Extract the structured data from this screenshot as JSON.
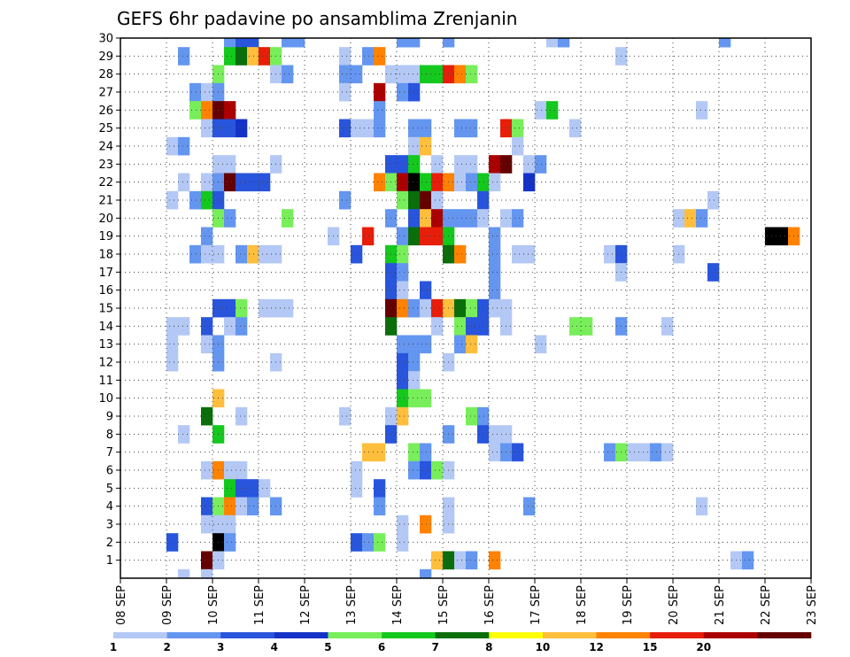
{
  "chart_data": {
    "type": "heatmap",
    "title": "GEFS 6hr padavine po ansamblima Zrenjanin",
    "xlabel": "",
    "ylabel": "",
    "x_ticks": [
      "08 SEP",
      "09 SEP",
      "10 SEP",
      "11 SEP",
      "12 SEP",
      "13 SEP",
      "14 SEP",
      "15 SEP",
      "16 SEP",
      "17 SEP",
      "18 SEP",
      "19 SEP",
      "20 SEP",
      "21 SEP",
      "22 SEP",
      "23 SEP"
    ],
    "y_ticks": [
      "1",
      "2",
      "3",
      "4",
      "5",
      "6",
      "7",
      "8",
      "9",
      "10",
      "11",
      "12",
      "13",
      "14",
      "15",
      "16",
      "17",
      "18",
      "19",
      "20",
      "21",
      "22",
      "23",
      "24",
      "25",
      "26",
      "27",
      "28",
      "29",
      "30"
    ],
    "x_range_6h_steps": [
      0,
      60
    ],
    "y_range_members": [
      0,
      30
    ],
    "grid": true,
    "colorbar": {
      "labels": [
        "1",
        "2",
        "3",
        "4",
        "5",
        "6",
        "7",
        "8",
        "10",
        "12",
        "15",
        "20"
      ],
      "colors": [
        "#b4c8f5",
        "#6496f0",
        "#2855dc",
        "#1432c8",
        "#78ee5a",
        "#14c81e",
        "#0a6e0a",
        "#ffff00",
        "#ffbe3c",
        "#ff8200",
        "#e61e0a",
        "#aa0000",
        "#640000"
      ]
    },
    "cells": [
      [
        9,
        30,
        2
      ],
      [
        10,
        30,
        3
      ],
      [
        11,
        30,
        3
      ],
      [
        14,
        30,
        2
      ],
      [
        15,
        30,
        2
      ],
      [
        24,
        30,
        2
      ],
      [
        25,
        30,
        2
      ],
      [
        28,
        30,
        2
      ],
      [
        37,
        30,
        1
      ],
      [
        38,
        30,
        2
      ],
      [
        52,
        30,
        2
      ],
      [
        5,
        29,
        2
      ],
      [
        9,
        29,
        6
      ],
      [
        10,
        29,
        7
      ],
      [
        11,
        29,
        9
      ],
      [
        12,
        29,
        11
      ],
      [
        13,
        29,
        5
      ],
      [
        19,
        29,
        1
      ],
      [
        21,
        29,
        2
      ],
      [
        22,
        29,
        10
      ],
      [
        43,
        29,
        1
      ],
      [
        8,
        28,
        5
      ],
      [
        13,
        28,
        1
      ],
      [
        14,
        28,
        2
      ],
      [
        19,
        28,
        2
      ],
      [
        20,
        28,
        2
      ],
      [
        23,
        28,
        1
      ],
      [
        24,
        28,
        1
      ],
      [
        25,
        28,
        1
      ],
      [
        26,
        28,
        6
      ],
      [
        27,
        28,
        6
      ],
      [
        28,
        28,
        11
      ],
      [
        29,
        28,
        10
      ],
      [
        30,
        28,
        5
      ],
      [
        6,
        27,
        2
      ],
      [
        7,
        27,
        1
      ],
      [
        8,
        27,
        2
      ],
      [
        19,
        27,
        1
      ],
      [
        22,
        27,
        12
      ],
      [
        24,
        27,
        2
      ],
      [
        25,
        27,
        3
      ],
      [
        6,
        26,
        5
      ],
      [
        7,
        26,
        10
      ],
      [
        8,
        26,
        13
      ],
      [
        9,
        26,
        12
      ],
      [
        22,
        26,
        2
      ],
      [
        36,
        26,
        1
      ],
      [
        37,
        26,
        6
      ],
      [
        50,
        26,
        1
      ],
      [
        7,
        25,
        1
      ],
      [
        8,
        25,
        3
      ],
      [
        9,
        25,
        3
      ],
      [
        10,
        25,
        4
      ],
      [
        19,
        25,
        3
      ],
      [
        20,
        25,
        1
      ],
      [
        21,
        25,
        1
      ],
      [
        22,
        25,
        2
      ],
      [
        25,
        25,
        2
      ],
      [
        26,
        25,
        2
      ],
      [
        29,
        25,
        2
      ],
      [
        30,
        25,
        2
      ],
      [
        33,
        25,
        11
      ],
      [
        34,
        25,
        5
      ],
      [
        39,
        25,
        1
      ],
      [
        4,
        24,
        1
      ],
      [
        5,
        24,
        2
      ],
      [
        25,
        24,
        1
      ],
      [
        26,
        24,
        9
      ],
      [
        34,
        24,
        1
      ],
      [
        8,
        23,
        1
      ],
      [
        9,
        23,
        1
      ],
      [
        13,
        23,
        1
      ],
      [
        23,
        23,
        3
      ],
      [
        24,
        23,
        3
      ],
      [
        25,
        23,
        6
      ],
      [
        27,
        23,
        1
      ],
      [
        29,
        23,
        1
      ],
      [
        30,
        23,
        1
      ],
      [
        32,
        23,
        12
      ],
      [
        33,
        23,
        13
      ],
      [
        35,
        23,
        1
      ],
      [
        36,
        23,
        2
      ],
      [
        5,
        22,
        1
      ],
      [
        7,
        22,
        1
      ],
      [
        8,
        22,
        2
      ],
      [
        9,
        22,
        13
      ],
      [
        10,
        22,
        3
      ],
      [
        11,
        22,
        3
      ],
      [
        12,
        22,
        3
      ],
      [
        22,
        22,
        10
      ],
      [
        23,
        22,
        5
      ],
      [
        24,
        22,
        12
      ],
      [
        25,
        22,
        14
      ],
      [
        26,
        22,
        6
      ],
      [
        27,
        22,
        11
      ],
      [
        28,
        22,
        10
      ],
      [
        29,
        22,
        1
      ],
      [
        30,
        22,
        2
      ],
      [
        31,
        22,
        6
      ],
      [
        32,
        22,
        1
      ],
      [
        35,
        22,
        4
      ],
      [
        4,
        21,
        1
      ],
      [
        6,
        21,
        2
      ],
      [
        7,
        21,
        6
      ],
      [
        8,
        21,
        3
      ],
      [
        19,
        21,
        2
      ],
      [
        24,
        21,
        5
      ],
      [
        25,
        21,
        7
      ],
      [
        26,
        21,
        13
      ],
      [
        27,
        21,
        1
      ],
      [
        31,
        21,
        3
      ],
      [
        51,
        21,
        1
      ],
      [
        8,
        20,
        5
      ],
      [
        9,
        20,
        2
      ],
      [
        14,
        20,
        5
      ],
      [
        23,
        20,
        2
      ],
      [
        25,
        20,
        3
      ],
      [
        26,
        20,
        9
      ],
      [
        27,
        20,
        12
      ],
      [
        28,
        20,
        2
      ],
      [
        29,
        20,
        2
      ],
      [
        30,
        20,
        2
      ],
      [
        31,
        20,
        1
      ],
      [
        33,
        20,
        1
      ],
      [
        34,
        20,
        2
      ],
      [
        48,
        20,
        1
      ],
      [
        49,
        20,
        9
      ],
      [
        50,
        20,
        2
      ],
      [
        7,
        19,
        2
      ],
      [
        18,
        19,
        1
      ],
      [
        21,
        19,
        11
      ],
      [
        24,
        19,
        2
      ],
      [
        25,
        19,
        7
      ],
      [
        26,
        19,
        11
      ],
      [
        27,
        19,
        11
      ],
      [
        28,
        19,
        6
      ],
      [
        32,
        19,
        2
      ],
      [
        56,
        19,
        14
      ],
      [
        57,
        19,
        14
      ],
      [
        58,
        19,
        10
      ],
      [
        6,
        18,
        2
      ],
      [
        7,
        18,
        1
      ],
      [
        8,
        18,
        1
      ],
      [
        10,
        18,
        2
      ],
      [
        11,
        18,
        9
      ],
      [
        12,
        18,
        1
      ],
      [
        13,
        18,
        1
      ],
      [
        20,
        18,
        3
      ],
      [
        23,
        18,
        6
      ],
      [
        24,
        18,
        5
      ],
      [
        28,
        18,
        7
      ],
      [
        29,
        18,
        10
      ],
      [
        32,
        18,
        2
      ],
      [
        34,
        18,
        1
      ],
      [
        35,
        18,
        1
      ],
      [
        42,
        18,
        1
      ],
      [
        43,
        18,
        3
      ],
      [
        48,
        18,
        1
      ],
      [
        23,
        17,
        3
      ],
      [
        24,
        17,
        2
      ],
      [
        32,
        17,
        2
      ],
      [
        43,
        17,
        1
      ],
      [
        51,
        17,
        3
      ],
      [
        23,
        16,
        3
      ],
      [
        24,
        16,
        1
      ],
      [
        26,
        16,
        3
      ],
      [
        32,
        16,
        2
      ],
      [
        8,
        15,
        3
      ],
      [
        9,
        15,
        3
      ],
      [
        10,
        15,
        5
      ],
      [
        12,
        15,
        1
      ],
      [
        13,
        15,
        1
      ],
      [
        14,
        15,
        1
      ],
      [
        23,
        15,
        13
      ],
      [
        24,
        15,
        10
      ],
      [
        25,
        15,
        2
      ],
      [
        26,
        15,
        1
      ],
      [
        27,
        15,
        11
      ],
      [
        28,
        15,
        9
      ],
      [
        29,
        15,
        7
      ],
      [
        30,
        15,
        5
      ],
      [
        31,
        15,
        3
      ],
      [
        32,
        15,
        1
      ],
      [
        33,
        15,
        1
      ],
      [
        4,
        14,
        1
      ],
      [
        5,
        14,
        1
      ],
      [
        7,
        14,
        3
      ],
      [
        9,
        14,
        1
      ],
      [
        10,
        14,
        2
      ],
      [
        23,
        14,
        7
      ],
      [
        27,
        14,
        1
      ],
      [
        29,
        14,
        5
      ],
      [
        30,
        14,
        3
      ],
      [
        31,
        14,
        3
      ],
      [
        33,
        14,
        1
      ],
      [
        39,
        14,
        5
      ],
      [
        40,
        14,
        5
      ],
      [
        43,
        14,
        2
      ],
      [
        47,
        14,
        1
      ],
      [
        4,
        13,
        1
      ],
      [
        7,
        13,
        1
      ],
      [
        8,
        13,
        2
      ],
      [
        24,
        13,
        2
      ],
      [
        25,
        13,
        2
      ],
      [
        26,
        13,
        2
      ],
      [
        29,
        13,
        2
      ],
      [
        30,
        13,
        9
      ],
      [
        36,
        13,
        1
      ],
      [
        4,
        12,
        1
      ],
      [
        8,
        12,
        2
      ],
      [
        13,
        12,
        1
      ],
      [
        24,
        12,
        3
      ],
      [
        25,
        12,
        2
      ],
      [
        28,
        12,
        1
      ],
      [
        24,
        11,
        3
      ],
      [
        25,
        11,
        1
      ],
      [
        8,
        10,
        9
      ],
      [
        24,
        10,
        6
      ],
      [
        25,
        10,
        5
      ],
      [
        26,
        10,
        5
      ],
      [
        7,
        9,
        7
      ],
      [
        10,
        9,
        1
      ],
      [
        19,
        9,
        1
      ],
      [
        23,
        9,
        1
      ],
      [
        24,
        9,
        9
      ],
      [
        30,
        9,
        5
      ],
      [
        31,
        9,
        2
      ],
      [
        5,
        8,
        1
      ],
      [
        8,
        8,
        6
      ],
      [
        23,
        8,
        3
      ],
      [
        28,
        8,
        2
      ],
      [
        31,
        8,
        3
      ],
      [
        32,
        8,
        1
      ],
      [
        33,
        8,
        1
      ],
      [
        21,
        7,
        9
      ],
      [
        22,
        7,
        9
      ],
      [
        25,
        7,
        5
      ],
      [
        26,
        7,
        2
      ],
      [
        32,
        7,
        1
      ],
      [
        33,
        7,
        2
      ],
      [
        34,
        7,
        3
      ],
      [
        42,
        7,
        2
      ],
      [
        43,
        7,
        5
      ],
      [
        44,
        7,
        1
      ],
      [
        45,
        7,
        1
      ],
      [
        46,
        7,
        2
      ],
      [
        47,
        7,
        1
      ],
      [
        7,
        6,
        1
      ],
      [
        8,
        6,
        10
      ],
      [
        9,
        6,
        1
      ],
      [
        10,
        6,
        1
      ],
      [
        20,
        6,
        1
      ],
      [
        25,
        6,
        2
      ],
      [
        26,
        6,
        3
      ],
      [
        27,
        6,
        5
      ],
      [
        28,
        6,
        1
      ],
      [
        9,
        5,
        6
      ],
      [
        10,
        5,
        3
      ],
      [
        11,
        5,
        3
      ],
      [
        12,
        5,
        1
      ],
      [
        20,
        5,
        1
      ],
      [
        22,
        5,
        3
      ],
      [
        7,
        4,
        3
      ],
      [
        8,
        4,
        5
      ],
      [
        9,
        4,
        10
      ],
      [
        10,
        4,
        1
      ],
      [
        11,
        4,
        2
      ],
      [
        13,
        4,
        2
      ],
      [
        22,
        4,
        2
      ],
      [
        28,
        4,
        1
      ],
      [
        35,
        4,
        2
      ],
      [
        50,
        4,
        1
      ],
      [
        7,
        3,
        1
      ],
      [
        8,
        3,
        1
      ],
      [
        9,
        3,
        1
      ],
      [
        24,
        3,
        1
      ],
      [
        26,
        3,
        10
      ],
      [
        28,
        3,
        1
      ],
      [
        4,
        2,
        3
      ],
      [
        8,
        2,
        14
      ],
      [
        9,
        2,
        2
      ],
      [
        20,
        2,
        3
      ],
      [
        21,
        2,
        2
      ],
      [
        22,
        2,
        5
      ],
      [
        24,
        2,
        1
      ],
      [
        7,
        1,
        13
      ],
      [
        8,
        1,
        1
      ],
      [
        27,
        1,
        9
      ],
      [
        28,
        1,
        7
      ],
      [
        29,
        1,
        1
      ],
      [
        30,
        1,
        2
      ],
      [
        32,
        1,
        10
      ],
      [
        53,
        1,
        1
      ],
      [
        54,
        1,
        2
      ],
      [
        5,
        0,
        1
      ],
      [
        7,
        0,
        1
      ],
      [
        26,
        0,
        2
      ],
      [
        6,
        -1,
        3
      ],
      [
        21,
        -1,
        1
      ],
      [
        22,
        -1,
        2
      ],
      [
        23,
        -1,
        10
      ],
      [
        28,
        -1,
        11
      ],
      [
        29,
        -1,
        9
      ],
      [
        30,
        -1,
        10
      ],
      [
        32,
        -1,
        1
      ]
    ]
  }
}
